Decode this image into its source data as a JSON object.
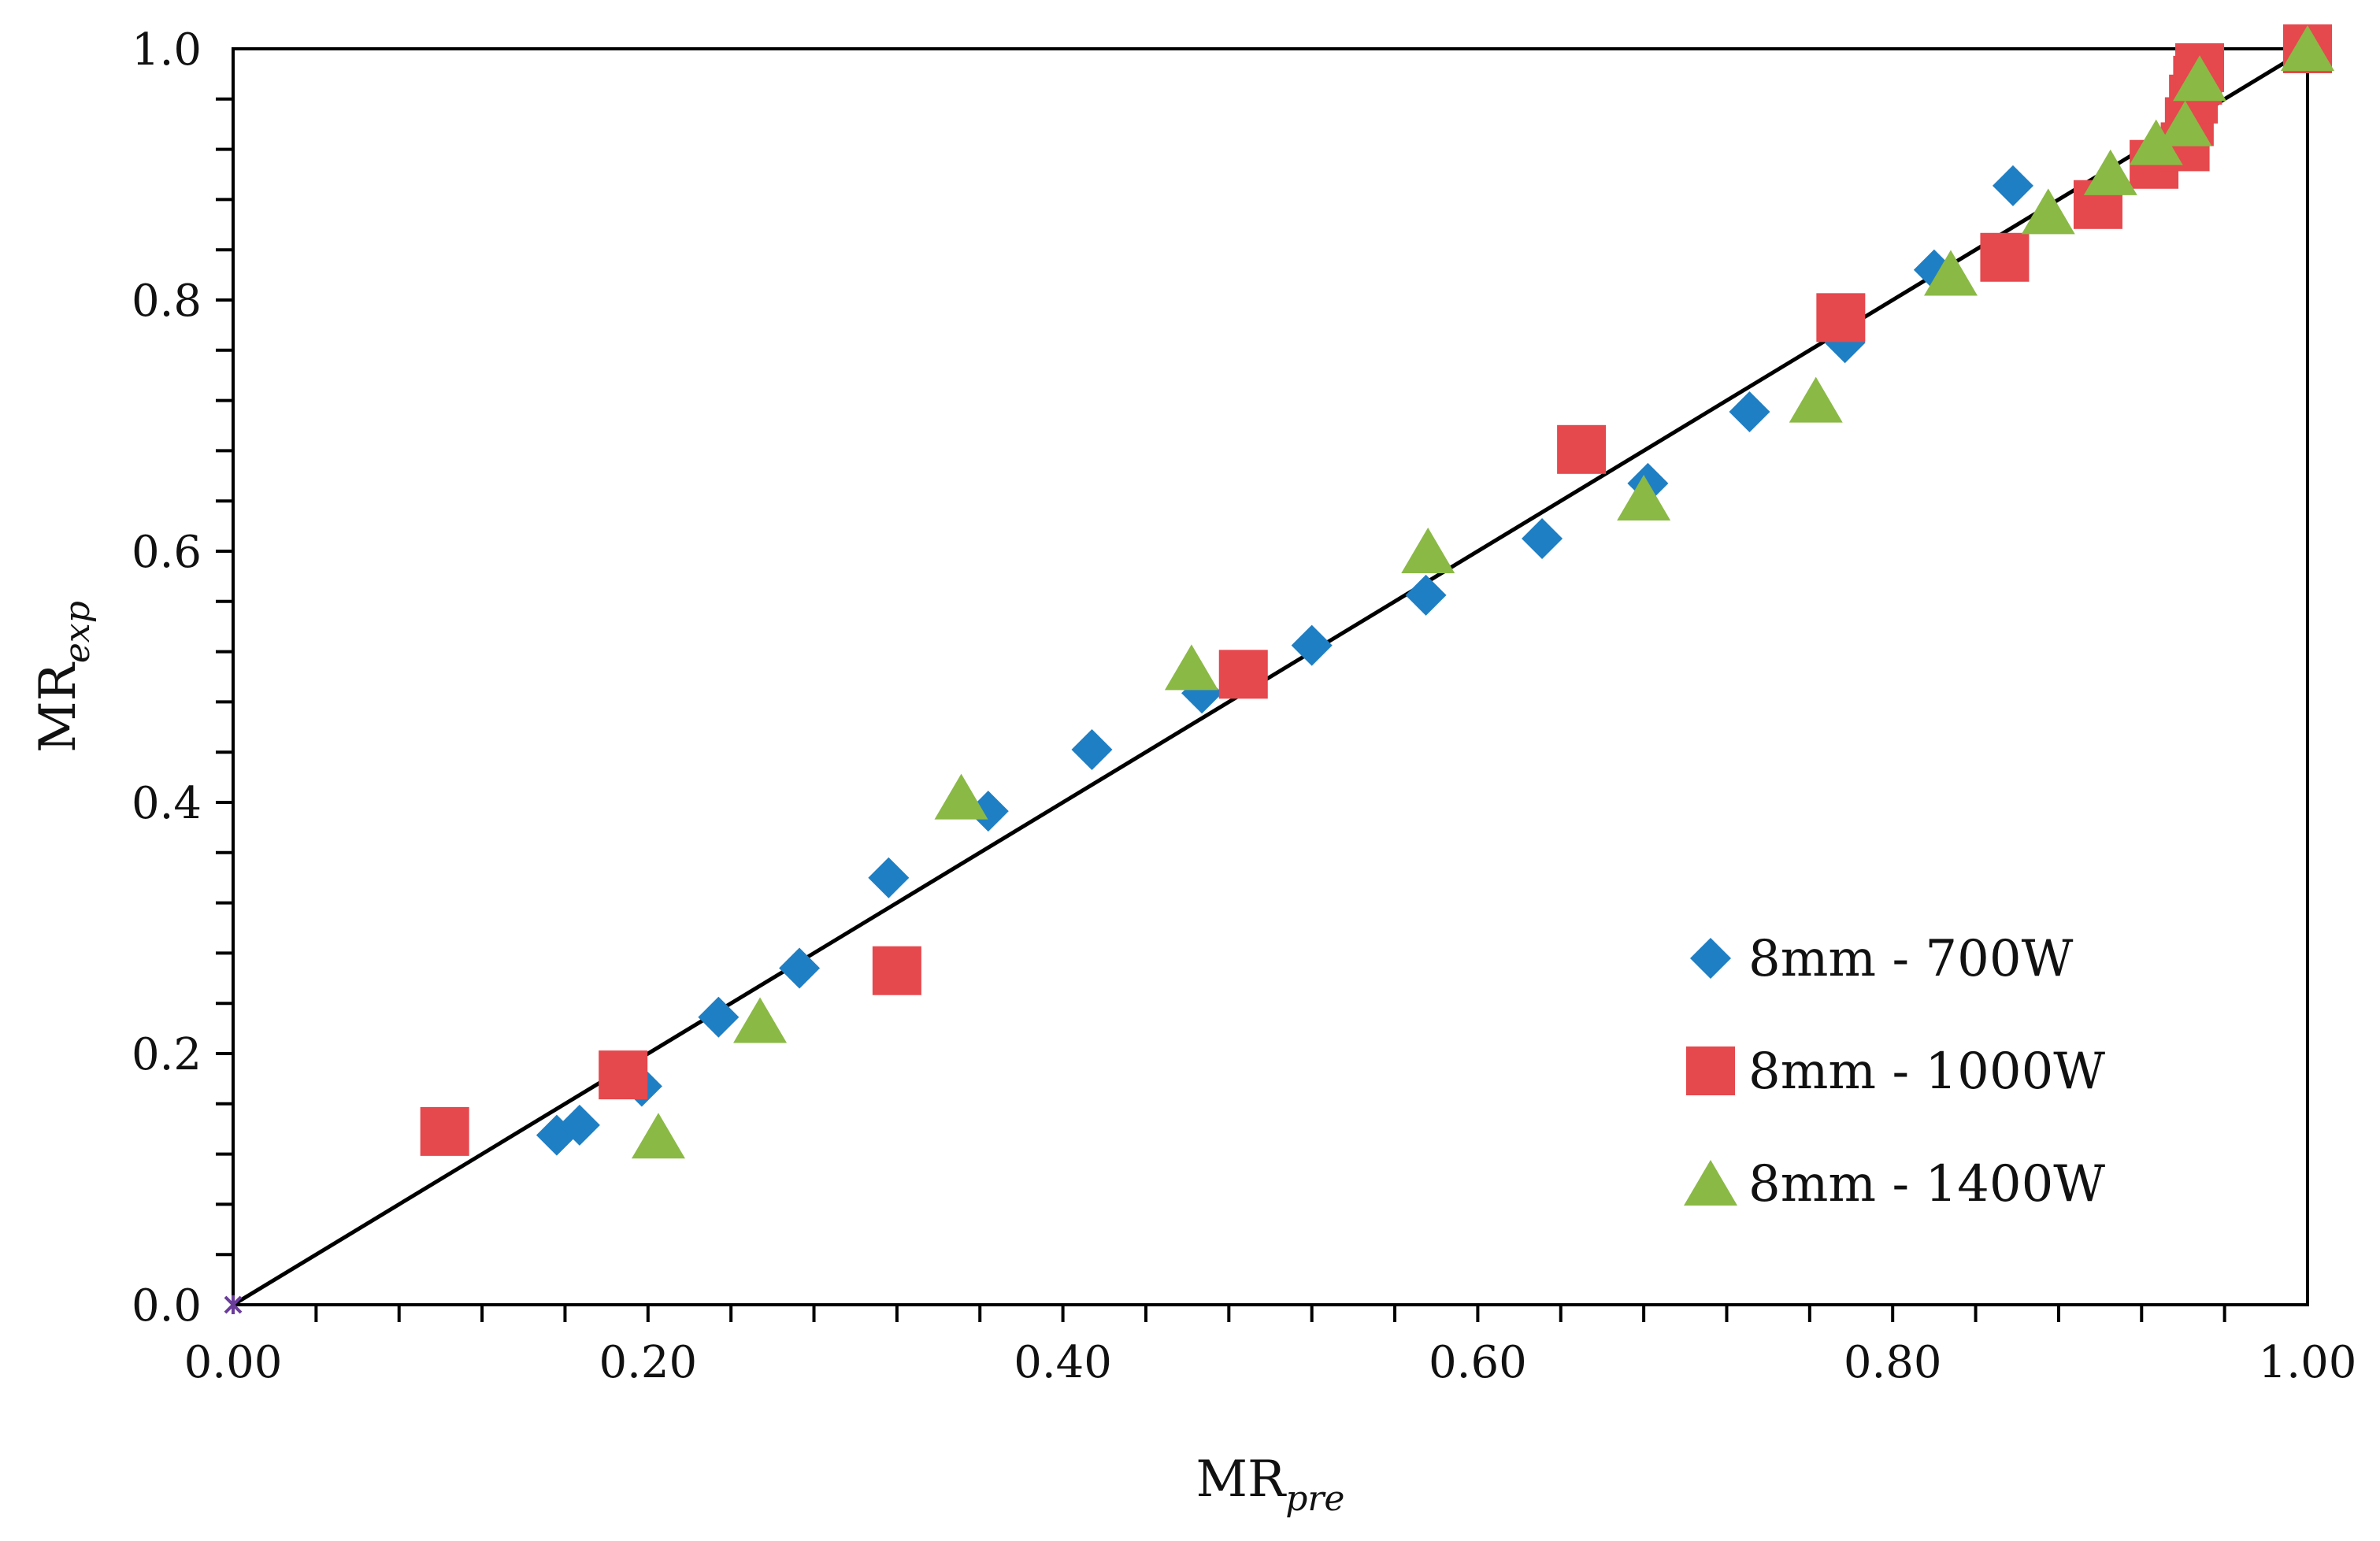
{
  "chart_data": {
    "type": "scatter",
    "title": "",
    "xlabel": {
      "main": "MR",
      "sub": "pre"
    },
    "ylabel": {
      "main": "MR",
      "sub": "exp"
    },
    "xlim": [
      0,
      1
    ],
    "ylim": [
      0,
      1
    ],
    "x_ticks": [
      {
        "value": 0.0,
        "label": "0.00"
      },
      {
        "value": 0.2,
        "label": "0.20"
      },
      {
        "value": 0.4,
        "label": "0.40"
      },
      {
        "value": 0.6,
        "label": "0.60"
      },
      {
        "value": 0.8,
        "label": "0.80"
      },
      {
        "value": 1.0,
        "label": "1.00"
      }
    ],
    "y_ticks": [
      {
        "value": 0.0,
        "label": "0.0"
      },
      {
        "value": 0.2,
        "label": "0.2"
      },
      {
        "value": 0.4,
        "label": "0.4"
      },
      {
        "value": 0.6,
        "label": "0.6"
      },
      {
        "value": 0.8,
        "label": "0.8"
      },
      {
        "value": 1.0,
        "label": "1.0"
      }
    ],
    "x_minor_step": 0.04,
    "y_minor_step": 0.04,
    "grid": false,
    "legend_position": "bottom-right",
    "reference_line": {
      "x": [
        0,
        1
      ],
      "y": [
        0,
        1
      ],
      "color": "#000000"
    },
    "origin_marker": {
      "x": 0,
      "y": 0,
      "color": "#6a3d9a"
    },
    "series": [
      {
        "name": "8mm - 700W",
        "marker": "diamond",
        "color": "#1f7fc4",
        "points": [
          [
            0.156,
            0.135
          ],
          [
            0.167,
            0.143
          ],
          [
            0.197,
            0.174
          ],
          [
            0.234,
            0.229
          ],
          [
            0.273,
            0.268
          ],
          [
            0.316,
            0.34
          ],
          [
            0.364,
            0.393
          ],
          [
            0.414,
            0.442
          ],
          [
            0.467,
            0.487
          ],
          [
            0.52,
            0.525
          ],
          [
            0.575,
            0.565
          ],
          [
            0.631,
            0.61
          ],
          [
            0.682,
            0.654
          ],
          [
            0.731,
            0.711
          ],
          [
            0.777,
            0.766
          ],
          [
            0.82,
            0.824
          ],
          [
            0.858,
            0.891
          ],
          [
            1.0,
            1.0
          ]
        ]
      },
      {
        "name": "8mm - 1000W",
        "marker": "square",
        "color": "#e5484d",
        "points": [
          [
            0.102,
            0.138
          ],
          [
            0.188,
            0.183
          ],
          [
            0.32,
            0.266
          ],
          [
            0.487,
            0.502
          ],
          [
            0.65,
            0.681
          ],
          [
            0.775,
            0.786
          ],
          [
            0.854,
            0.834
          ],
          [
            0.899,
            0.876
          ],
          [
            0.926,
            0.908
          ],
          [
            0.941,
            0.922
          ],
          [
            0.943,
            0.942
          ],
          [
            0.945,
            0.96
          ],
          [
            0.947,
            0.975
          ],
          [
            0.948,
            0.985
          ],
          [
            1.0,
            1.0
          ]
        ]
      },
      {
        "name": "8mm - 1400W",
        "marker": "triangle",
        "color": "#8ab945",
        "points": [
          [
            0.205,
            0.134
          ],
          [
            0.254,
            0.226
          ],
          [
            0.351,
            0.404
          ],
          [
            0.462,
            0.507
          ],
          [
            0.576,
            0.6
          ],
          [
            0.68,
            0.642
          ],
          [
            0.763,
            0.72
          ],
          [
            0.828,
            0.821
          ],
          [
            0.875,
            0.87
          ],
          [
            0.905,
            0.901
          ],
          [
            0.927,
            0.925
          ],
          [
            0.941,
            0.94
          ],
          [
            0.948,
            0.976
          ],
          [
            1.0,
            1.0
          ]
        ]
      }
    ]
  }
}
